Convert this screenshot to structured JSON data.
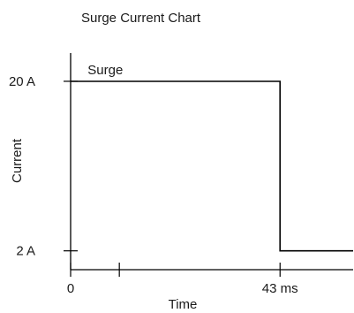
{
  "chart_data": {
    "type": "line",
    "title": "Surge Current Chart",
    "xlabel": "Time",
    "ylabel": "Current",
    "x_unit": "ms",
    "y_unit": "A",
    "xlim": [
      0,
      58
    ],
    "ylim": [
      0,
      23
    ],
    "x_ticks": [
      {
        "value": 0,
        "label": "0"
      },
      {
        "value": 10,
        "label": ""
      },
      {
        "value": 43,
        "label": "43 ms"
      }
    ],
    "y_ticks": [
      {
        "value": 2,
        "label": "2 A"
      },
      {
        "value": 20,
        "label": "20 A"
      }
    ],
    "grid": false,
    "legend": "none",
    "series": [
      {
        "x": [
          0,
          43,
          43,
          58
        ],
        "y": [
          20,
          20,
          2,
          2
        ]
      }
    ],
    "annotations": [
      {
        "text": "Surge",
        "x": 3.5,
        "y": 20
      }
    ],
    "colors": {
      "line": "#000000",
      "axis": "#000000",
      "text": "#1a1a1a"
    }
  }
}
